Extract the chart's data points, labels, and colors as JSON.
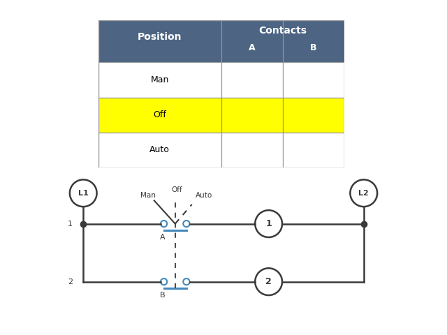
{
  "table": {
    "header_bg": "#4d6582",
    "header_text_color": "#ffffff",
    "row_off_bg": "#ffff00",
    "row_white_bg": "#ffffff",
    "border_color": "#999999",
    "positions": [
      "Man",
      "Off",
      "Auto"
    ]
  },
  "diagram": {
    "bg_color": "#ffffff",
    "line_color": "#3a3a3a",
    "contact_color": "#4488bb",
    "L1_label": "L1",
    "L2_label": "L2",
    "load1_label": "1",
    "load2_label": "2",
    "row1_label": "1",
    "row2_label": "2",
    "A_label": "A",
    "B_label": "B",
    "man_label": "Man",
    "off_label": "Off",
    "auto_label": "Auto"
  }
}
